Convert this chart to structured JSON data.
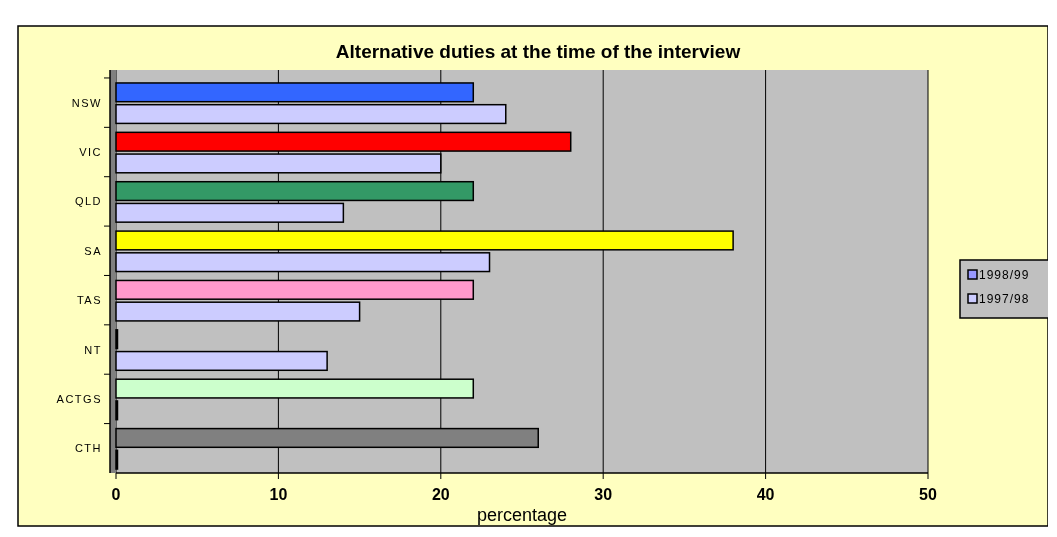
{
  "chart_data": {
    "type": "bar",
    "orientation": "horizontal",
    "title": "Alternative duties at the time of the interview",
    "xlabel": "percentage",
    "categories": [
      "NSW",
      "VIC",
      "QLD",
      "SA",
      "TAS",
      "NT",
      "ACTGS",
      "CTH"
    ],
    "series": [
      {
        "name": "1998/99",
        "color": "#9999ff",
        "colors": [
          "#3366ff",
          "#ff0000",
          "#339966",
          "#ffff00",
          "#ff99cc",
          "#9999ff",
          "#ccffcc",
          "#808080"
        ],
        "values": [
          22,
          28,
          22,
          38,
          22,
          0,
          22,
          26
        ]
      },
      {
        "name": "1997/98",
        "color": "#ccccff",
        "values": [
          24,
          20,
          14,
          23,
          15,
          13,
          0,
          0
        ]
      }
    ],
    "xlim": [
      0,
      50
    ],
    "xticks": [
      0,
      10,
      20,
      30,
      40,
      50
    ],
    "grid": "x",
    "legend": "right"
  }
}
